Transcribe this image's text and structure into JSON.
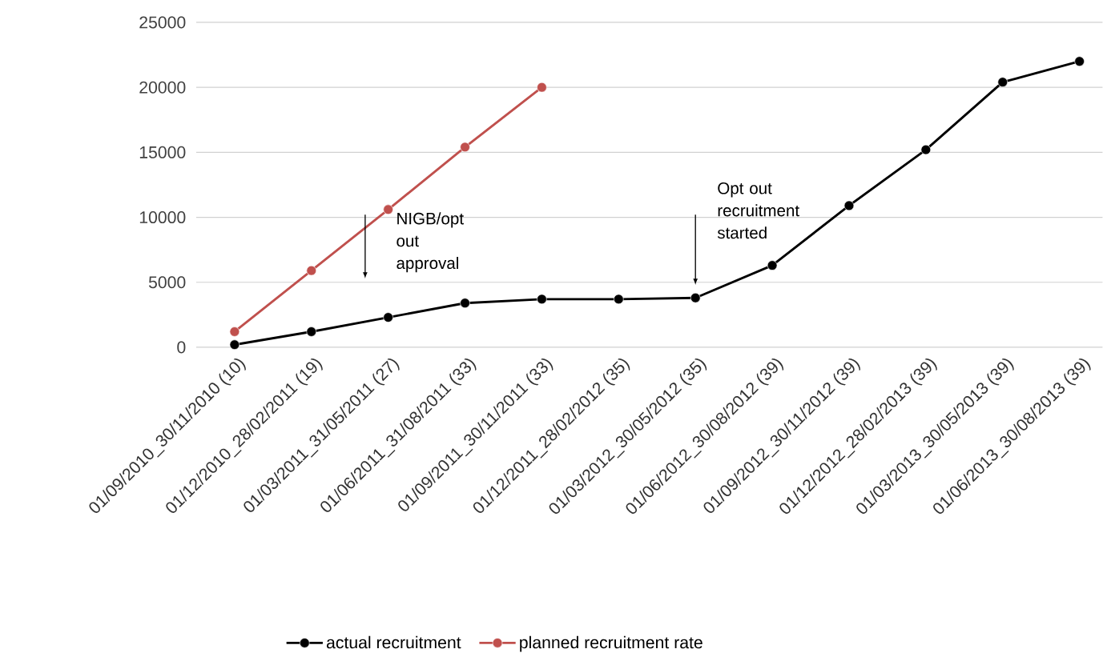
{
  "chart_data": {
    "type": "line",
    "categories": [
      "01/09/2010_30/11/2010 (10)",
      "01/12/2010_28/02/2011 (19)",
      "01/03/2011_31/05/2011 (27)",
      "01/06/2011_31/08/2011 (33)",
      "01/09/2011_30/11/2011 (33)",
      "01/12/2011_28/02/2012 (35)",
      "01/03/2012_30/05/2012 (35)",
      "01/06/2012_30/08/2012 (39)",
      "01/09/2012_30/11/2012 (39)",
      "01/12/2012_28/02/2013 (39)",
      "01/03/2013_30/05/2013 (39)",
      "01/06/2013_30/08/2013 (39)"
    ],
    "series": [
      {
        "name": "actual recruitment",
        "color": "#000000",
        "values": [
          200,
          1200,
          2300,
          3400,
          3700,
          3700,
          3800,
          6300,
          10900,
          15200,
          20400,
          22000
        ]
      },
      {
        "name": "planned recruitment rate",
        "color": "#c0504d",
        "values": [
          1200,
          5900,
          10600,
          15400,
          20000,
          null,
          null,
          null,
          null,
          null,
          null,
          null
        ]
      }
    ],
    "ylim": [
      0,
      25000
    ],
    "yticks": [
      0,
      5000,
      10000,
      15000,
      20000,
      25000
    ],
    "grid": "y",
    "legend": "bottom",
    "marker": "circle",
    "annotations": [
      "NIGB/opt out approval",
      "Opt out recruitment started"
    ]
  }
}
